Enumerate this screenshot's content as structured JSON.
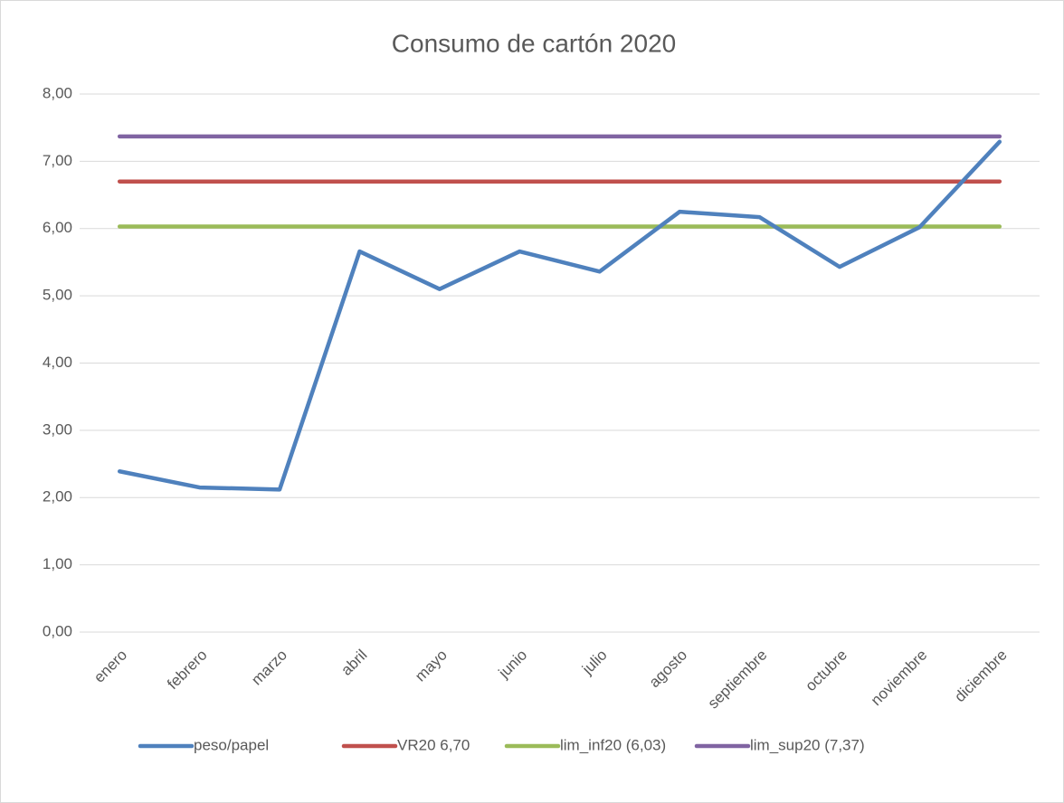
{
  "chart_data": {
    "type": "line",
    "title": "Consumo de cartón 2020",
    "categories": [
      "enero",
      "febrero",
      "marzo",
      "abril",
      "mayo",
      "junio",
      "julio",
      "agosto",
      "septiembre",
      "octubre",
      "noviembre",
      "diciembre"
    ],
    "series": [
      {
        "name": "peso/papel",
        "color": "#4f81bd",
        "values": [
          2.39,
          2.15,
          2.12,
          5.66,
          5.1,
          5.66,
          5.36,
          6.25,
          6.17,
          5.43,
          6.02,
          7.29
        ]
      },
      {
        "name": "VR20  6,70",
        "color": "#c0504d",
        "values": [
          6.7,
          6.7,
          6.7,
          6.7,
          6.7,
          6.7,
          6.7,
          6.7,
          6.7,
          6.7,
          6.7,
          6.7
        ]
      },
      {
        "name": "lim_inf20 (6,03)",
        "color": "#9bbb59",
        "values": [
          6.03,
          6.03,
          6.03,
          6.03,
          6.03,
          6.03,
          6.03,
          6.03,
          6.03,
          6.03,
          6.03,
          6.03
        ]
      },
      {
        "name": "lim_sup20 (7,37)",
        "color": "#8064a2",
        "values": [
          7.37,
          7.37,
          7.37,
          7.37,
          7.37,
          7.37,
          7.37,
          7.37,
          7.37,
          7.37,
          7.37,
          7.37
        ]
      }
    ],
    "ylim": [
      0,
      8
    ],
    "yticks": [
      {
        "value": 0,
        "label": "0,00"
      },
      {
        "value": 1,
        "label": "1,00"
      },
      {
        "value": 2,
        "label": "2,00"
      },
      {
        "value": 3,
        "label": "3,00"
      },
      {
        "value": 4,
        "label": "4,00"
      },
      {
        "value": 5,
        "label": "5,00"
      },
      {
        "value": 6,
        "label": "6,00"
      },
      {
        "value": 7,
        "label": "7,00"
      },
      {
        "value": 8,
        "label": "8,00"
      }
    ],
    "grid": true,
    "legend": "bottom"
  }
}
